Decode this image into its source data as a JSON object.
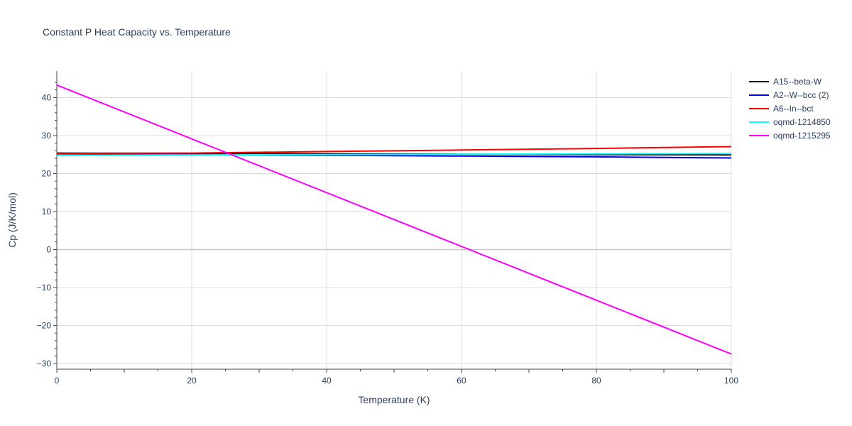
{
  "chart_data": {
    "type": "line",
    "title": "Constant P Heat Capacity vs. Temperature",
    "xlabel": "Temperature (K)",
    "ylabel": "Cp (J/K/mol)",
    "xlim": [
      0,
      100
    ],
    "ylim": [
      -31.5,
      47
    ],
    "x_ticks": [
      0,
      20,
      40,
      60,
      80,
      100
    ],
    "y_ticks": [
      -30,
      -20,
      -10,
      0,
      10,
      20,
      30,
      40
    ],
    "y_tick_labels": [
      "−30",
      "−20",
      "−10",
      "0",
      "10",
      "20",
      "30",
      "40"
    ],
    "grid": true,
    "legend_position": "top-right",
    "series": [
      {
        "name": "A15--beta-W",
        "color": "#000000",
        "x": [
          0,
          20,
          40,
          60,
          80,
          100
        ],
        "y": [
          25.4,
          25.3,
          25.2,
          25.1,
          25.0,
          24.9
        ]
      },
      {
        "name": "A2--W--bcc (2)",
        "color": "#0000ff",
        "x": [
          0,
          20,
          40,
          60,
          80,
          100
        ],
        "y": [
          25.2,
          25.0,
          24.8,
          24.6,
          24.4,
          24.1
        ]
      },
      {
        "name": "A6--In--bct",
        "color": "#ff0000",
        "x": [
          0,
          20,
          40,
          60,
          80,
          100
        ],
        "y": [
          25.3,
          25.4,
          25.8,
          26.2,
          26.6,
          27.1
        ]
      },
      {
        "name": "oqmd-1214850",
        "color": "#00ffff",
        "x": [
          0,
          20,
          40,
          60,
          80,
          100
        ],
        "y": [
          24.8,
          24.9,
          25.0,
          25.1,
          25.2,
          25.3
        ]
      },
      {
        "name": "oqmd-1215295",
        "color": "#ff00ff",
        "x": [
          0,
          100
        ],
        "y": [
          43.3,
          -27.5
        ]
      }
    ]
  }
}
